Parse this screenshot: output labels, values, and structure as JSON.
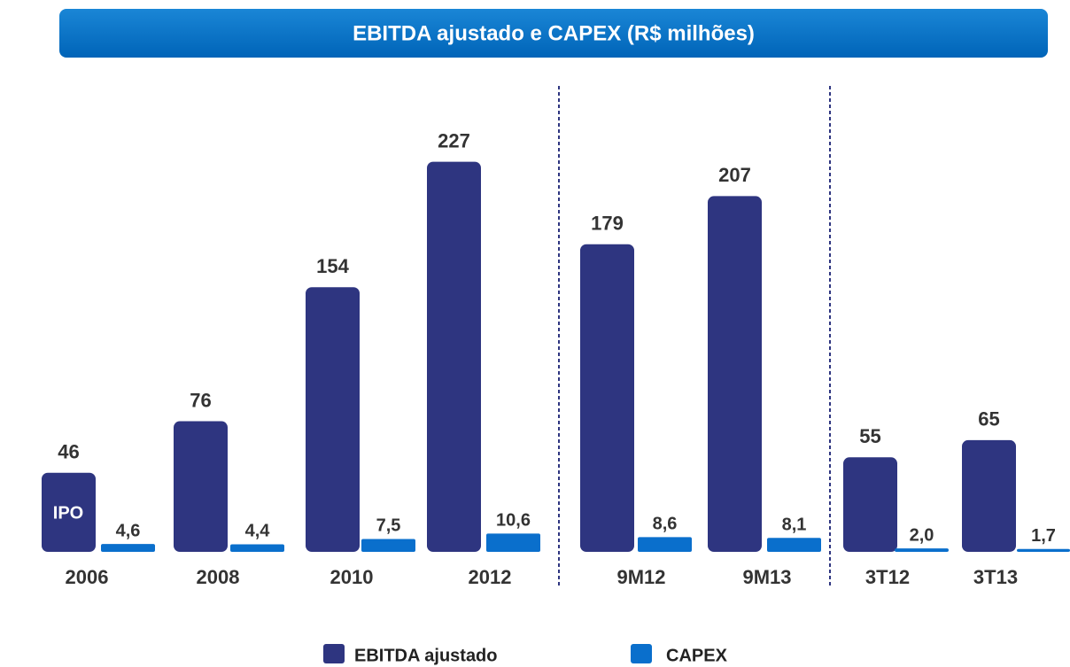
{
  "chart_data": {
    "type": "bar",
    "title": "EBITDA ajustado e CAPEX (R$ milhões)",
    "categories": [
      "2006",
      "2008",
      "2010",
      "2012",
      "9M12",
      "9M13",
      "3T12",
      "3T13"
    ],
    "series": [
      {
        "name": "EBITDA ajustado",
        "color": "#2e3580",
        "values": [
          46,
          76,
          154,
          227,
          179,
          207,
          55,
          65
        ]
      },
      {
        "name": "CAPEX",
        "color": "#0a6fcc",
        "values": [
          4.6,
          4.4,
          7.5,
          10.6,
          8.6,
          8.1,
          2.0,
          1.7
        ],
        "value_labels": [
          "4,6",
          "4,4",
          "7,5",
          "10,6",
          "8,6",
          "8,1",
          "2,0",
          "1,7"
        ]
      }
    ],
    "annotation": "IPO"
  }
}
